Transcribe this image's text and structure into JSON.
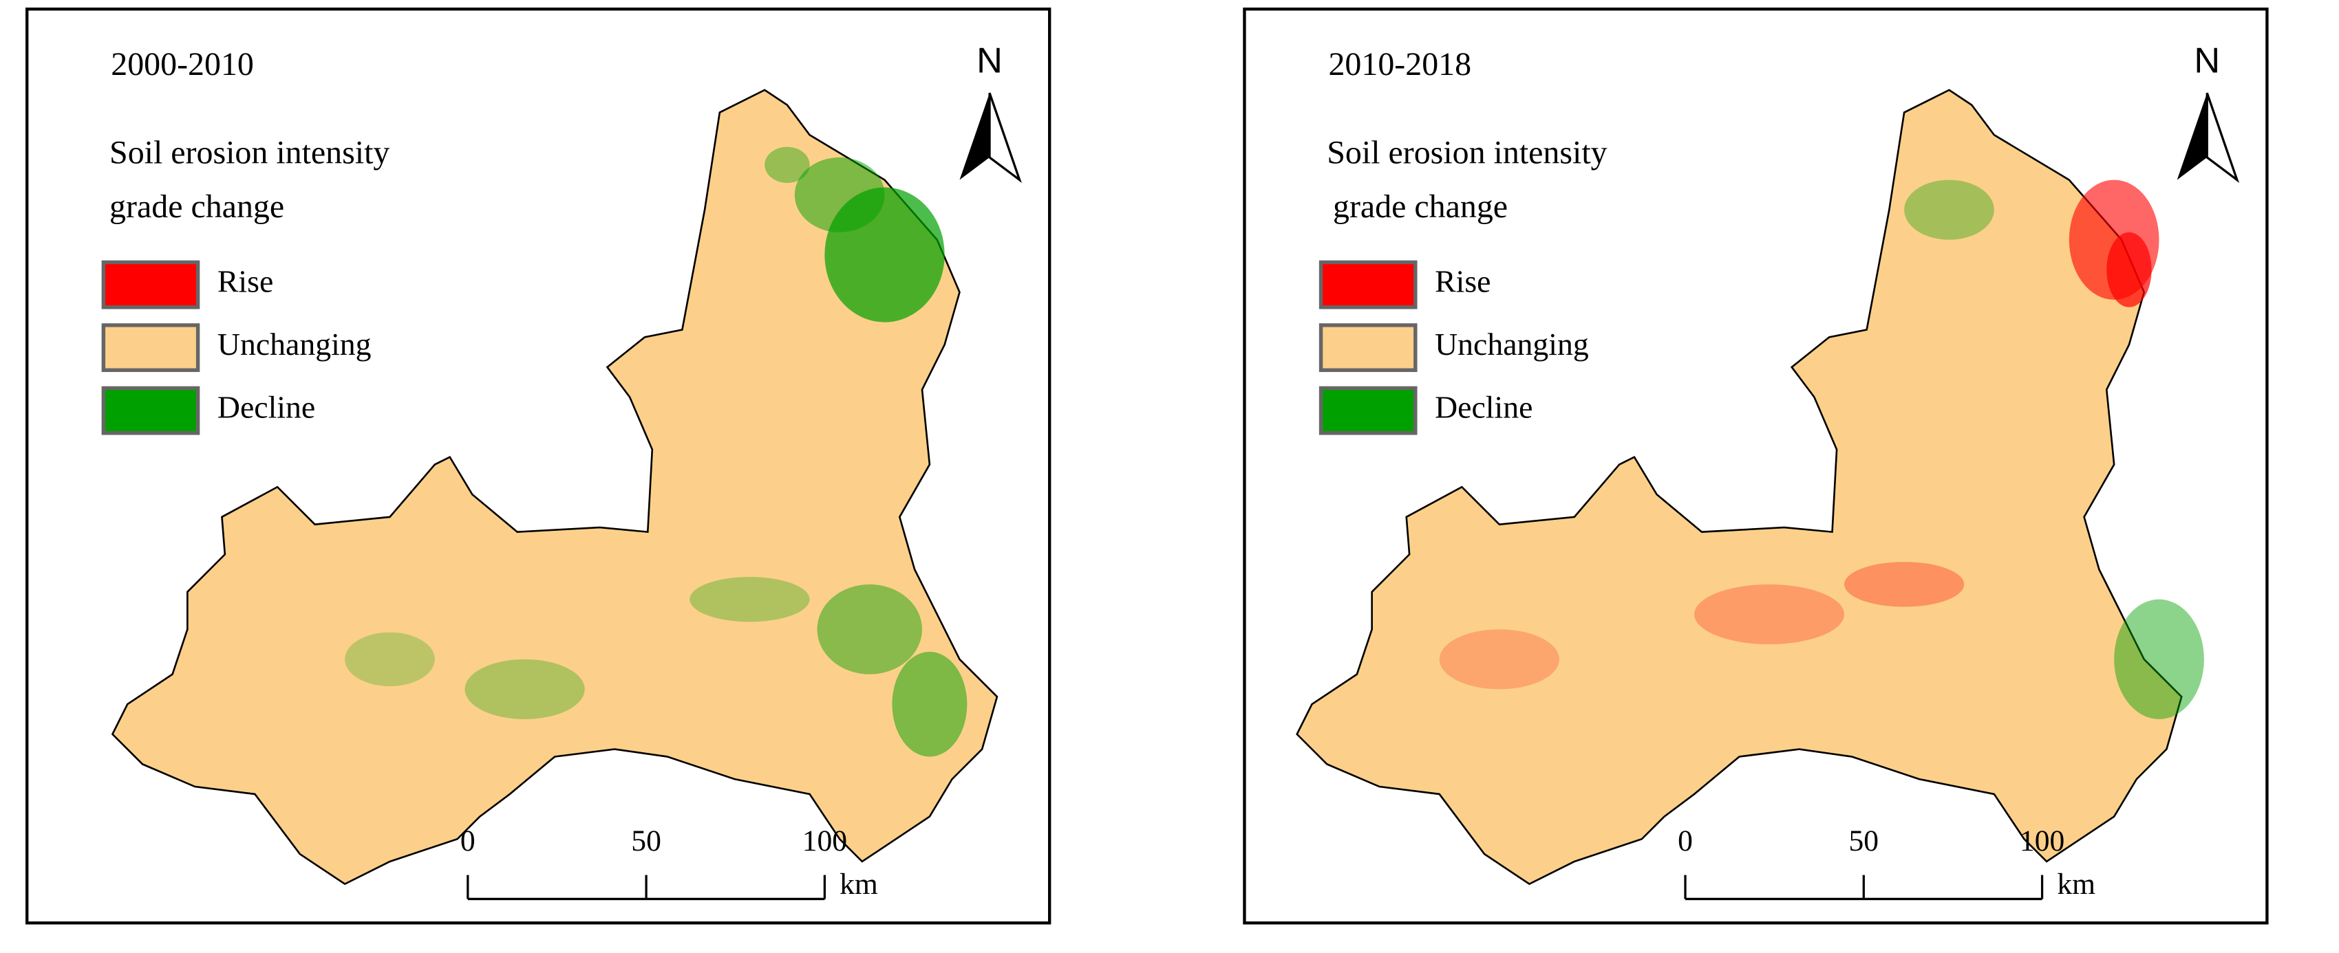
{
  "panels": [
    {
      "title": "2000-2010",
      "legend_title": [
        "Soil erosion intensity",
        "grade change"
      ],
      "legend": [
        {
          "label": "Rise",
          "color": "#ff0000"
        },
        {
          "label": "Unchanging",
          "color": "#fcd08a"
        },
        {
          "label": "Decline",
          "color": "#00a000"
        }
      ],
      "north": "N",
      "scale_bar": {
        "ticks": [
          0,
          50,
          100
        ],
        "unit": "km"
      }
    },
    {
      "title": "2010-2018",
      "legend_title": [
        "Soil erosion intensity",
        "grade change"
      ],
      "legend": [
        {
          "label": "Rise",
          "color": "#ff0000"
        },
        {
          "label": "Unchanging",
          "color": "#fcd08a"
        },
        {
          "label": "Decline",
          "color": "#00a000"
        }
      ],
      "north": "N",
      "scale_bar": {
        "ticks": [
          0,
          50,
          100
        ],
        "unit": "km"
      }
    }
  ]
}
